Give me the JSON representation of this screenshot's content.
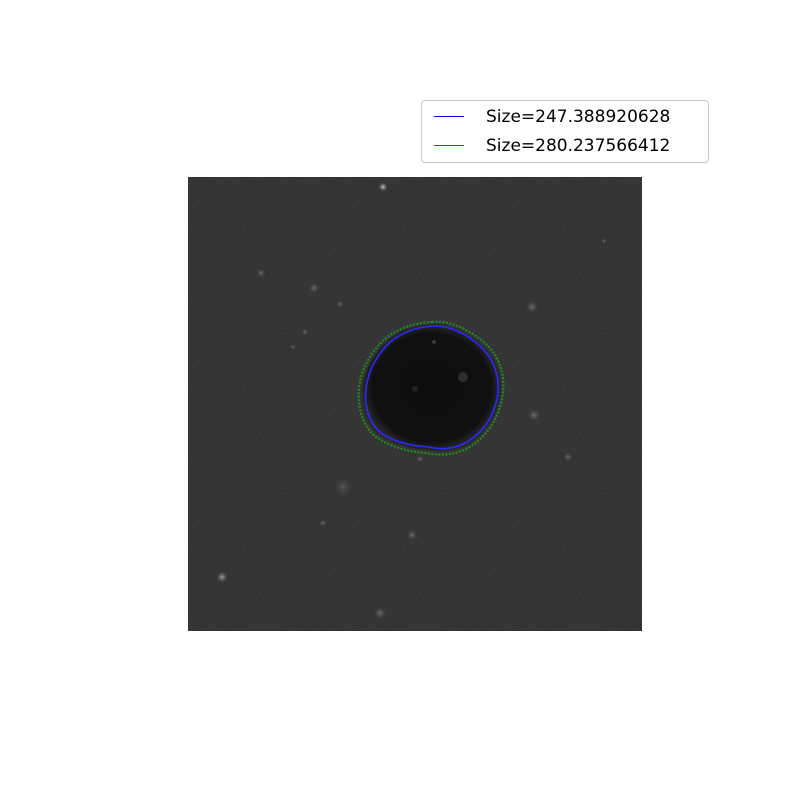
{
  "legend": {
    "items": [
      {
        "label": "Size=247.388920628",
        "color": "#0000ff"
      },
      {
        "label": "Size=280.237566412",
        "color": "#008000"
      }
    ]
  },
  "image": {
    "description_icon": "microscope-cell-image",
    "background_color": "#1e1e1e"
  }
}
